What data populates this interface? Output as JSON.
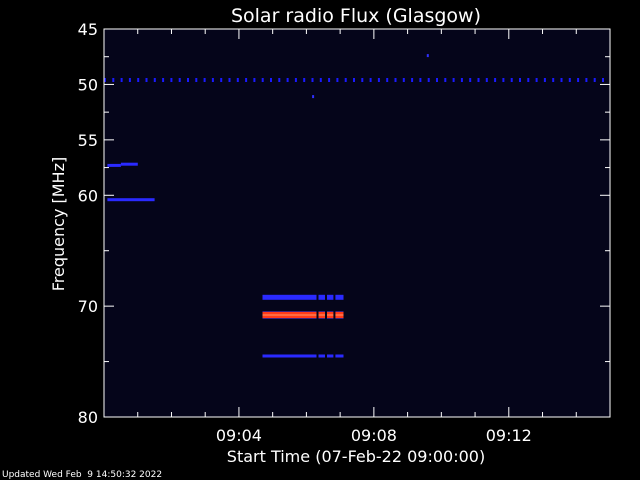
{
  "page": {
    "footer": "Updated Wed Feb  9 14:50:32 2022"
  },
  "chart_data": {
    "type": "heatmap",
    "title": "Solar radio Flux (Glasgow)",
    "xlabel": "Start Time (07-Feb-22 09:00:00)",
    "ylabel": "Frequency [MHz]",
    "xlim_minutes": [
      0,
      15
    ],
    "ylim_mhz": [
      45,
      80
    ],
    "y_inverted": true,
    "x_ticks": [
      {
        "value": 4,
        "label": "09:04"
      },
      {
        "value": 8,
        "label": "09:08"
      },
      {
        "value": 12,
        "label": "09:12"
      }
    ],
    "x_minor_ticks": [
      1,
      2,
      3,
      5,
      6,
      7,
      9,
      10,
      11,
      13,
      14
    ],
    "y_ticks": [
      {
        "value": 45,
        "label": "45"
      },
      {
        "value": 50,
        "label": "50"
      },
      {
        "value": 55,
        "label": "55"
      },
      {
        "value": 60,
        "label": "60"
      },
      {
        "value": 70,
        "label": "70"
      },
      {
        "value": 80,
        "label": "80"
      }
    ],
    "y_minor_ticks": [
      47.5,
      52.5,
      57.5,
      65,
      75
    ],
    "background_color": "#05051a",
    "features": [
      {
        "name": "rfi-line-49.6",
        "freq": 49.6,
        "t_start": 0,
        "t_end": 15,
        "color": "#1a1aff",
        "intensity": "low",
        "dashed": true
      },
      {
        "name": "rfi-line-57.3-a",
        "freq": 57.3,
        "t_start": 0.1,
        "t_end": 0.5,
        "color": "#2a2aff",
        "intensity": "low",
        "dashed": false
      },
      {
        "name": "rfi-line-57.3-b",
        "freq": 57.2,
        "t_start": 0.5,
        "t_end": 1.0,
        "color": "#2a2aff",
        "intensity": "low",
        "dashed": false
      },
      {
        "name": "rfi-line-60.5",
        "freq": 60.4,
        "t_start": 0.1,
        "t_end": 1.5,
        "color": "#2a2aff",
        "intensity": "low",
        "dashed": false
      },
      {
        "name": "burst-69",
        "freq": 69.2,
        "t_start": 4.7,
        "t_end": 7.1,
        "color": "#2a2aff",
        "intensity": "medium",
        "dashed": false
      },
      {
        "name": "burst-70.8",
        "freq": 70.8,
        "t_start": 4.7,
        "t_end": 7.1,
        "color": "#ff3b1a",
        "intensity": "high",
        "dashed": false
      },
      {
        "name": "burst-74.5",
        "freq": 74.5,
        "t_start": 4.7,
        "t_end": 7.1,
        "color": "#2a2aff",
        "intensity": "low",
        "dashed": false
      }
    ],
    "specks": [
      {
        "t": 6.2,
        "freq": 51.1
      },
      {
        "t": 9.6,
        "freq": 47.4
      }
    ]
  }
}
